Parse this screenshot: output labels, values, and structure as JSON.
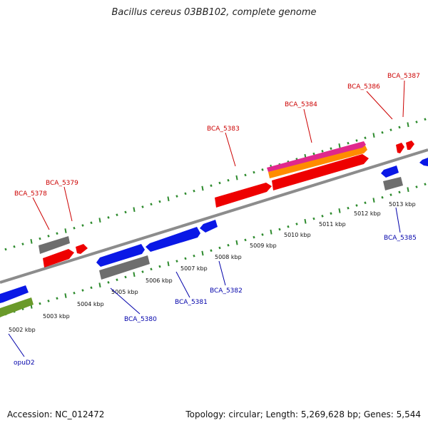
{
  "title": "Bacillus cereus 03BB102, complete genome",
  "footer": {
    "accession": "Accession: NC_012472",
    "summary": "Topology: circular; Length: 5,269,628 bp; Genes: 5,544"
  },
  "colors": {
    "backbone": "#8a8a8a",
    "tick": "#2e8b2e",
    "forward_label": "#cc0000",
    "reverse_label": "#0000aa",
    "red": "#ee0000",
    "blue": "#0a18e6",
    "gray": "#6e6e6e",
    "green": "#6a9a2a",
    "magenta": "#e0288c",
    "orange": "#ff8c00"
  },
  "scale": {
    "labels": [
      "5002 kbp",
      "5003 kbp",
      "5004 kbp",
      "5005 kbp",
      "5006 kbp",
      "5007 kbp",
      "5008 kbp",
      "5009 kbp",
      "5010 kbp",
      "5011 kbp",
      "5012 kbp",
      "5013 kbp"
    ]
  },
  "gene_labels": {
    "forward": [
      "BCA_5378",
      "BCA_5379",
      "BCA_5383",
      "BCA_5384",
      "BCA_5386",
      "BCA_5387"
    ],
    "reverse": [
      "opuD2",
      "BCA_5380",
      "BCA_5381",
      "BCA_5382",
      "BCA_5385"
    ]
  }
}
